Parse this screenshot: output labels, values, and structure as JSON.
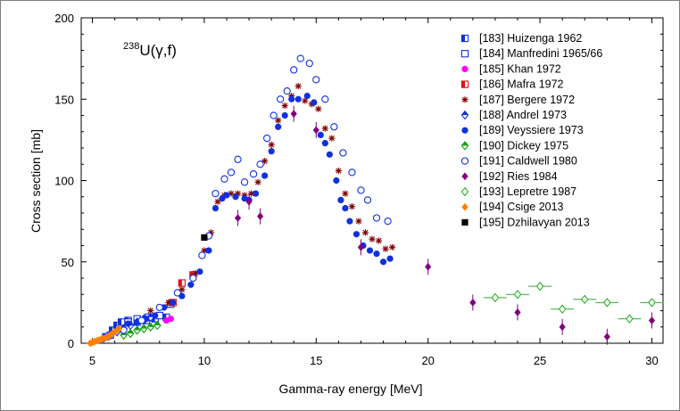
{
  "chart_data": {
    "type": "scatter",
    "xlabel": "Gamma-ray energy [MeV]",
    "ylabel": "Cross section [mb]",
    "xlim": [
      4.5,
      30.5
    ],
    "ylim": [
      0,
      200
    ],
    "xticks": [
      5,
      10,
      15,
      20,
      25,
      30
    ],
    "yticks": [
      0,
      50,
      100,
      150,
      200
    ],
    "grid": false,
    "legend_position": "top-right",
    "annotation": {
      "sup": "238",
      "text": "U(γ,f)"
    },
    "series": [
      {
        "name": "[183] Huizenga 1962",
        "color": "#1030e0",
        "marker": "half-square",
        "points": [
          [
            5.6,
            4
          ],
          [
            5.9,
            8
          ],
          [
            6.1,
            11
          ],
          [
            6.3,
            13
          ],
          [
            6.6,
            14
          ],
          [
            7.0,
            13
          ],
          [
            7.4,
            14
          ],
          [
            7.8,
            15
          ],
          [
            8.3,
            16
          ]
        ]
      },
      {
        "name": "[184] Manfredini 1965/66",
        "color": "#1030e0",
        "marker": "open-square",
        "points": [
          [
            5.8,
            5
          ],
          [
            6.2,
            9
          ],
          [
            6.6,
            13
          ],
          [
            7.0,
            15
          ],
          [
            7.5,
            16
          ],
          [
            8.0,
            17
          ],
          [
            8.5,
            24
          ]
        ]
      },
      {
        "name": "[185] Khan 1972",
        "color": "#ff00ff",
        "marker": "filled-circle",
        "points": [
          [
            8.3,
            14
          ],
          [
            8.5,
            15
          ]
        ]
      },
      {
        "name": "[186] Mafra 1972",
        "color": "#e01010",
        "marker": "half-square",
        "points": [
          [
            8.6,
            25
          ],
          [
            9.0,
            37
          ],
          [
            9.5,
            42
          ]
        ]
      },
      {
        "name": "[187] Bergere 1972",
        "color": "#800000",
        "marker": "asterisk",
        "points": [
          [
            7.6,
            20
          ],
          [
            8.4,
            25
          ],
          [
            9.0,
            33
          ],
          [
            9.6,
            43
          ],
          [
            10.0,
            57
          ],
          [
            10.3,
            68
          ],
          [
            10.6,
            87
          ],
          [
            10.9,
            91
          ],
          [
            11.2,
            92
          ],
          [
            11.5,
            92
          ],
          [
            11.8,
            91
          ],
          [
            12.1,
            92
          ],
          [
            12.4,
            99
          ],
          [
            12.7,
            112
          ],
          [
            13.0,
            122
          ],
          [
            13.3,
            137
          ],
          [
            13.6,
            146
          ],
          [
            13.9,
            152
          ],
          [
            14.2,
            158
          ],
          [
            14.5,
            149
          ],
          [
            14.8,
            147
          ],
          [
            15.1,
            144
          ],
          [
            15.4,
            132
          ],
          [
            15.7,
            126
          ],
          [
            16.0,
            106
          ],
          [
            16.3,
            92
          ],
          [
            16.6,
            84
          ],
          [
            16.9,
            75
          ],
          [
            17.2,
            68
          ],
          [
            17.5,
            64
          ],
          [
            17.8,
            63
          ],
          [
            18.1,
            58
          ],
          [
            18.4,
            59
          ]
        ]
      },
      {
        "name": "[188] Andrel 1973",
        "color": "#1030e0",
        "marker": "half-diamond",
        "points": [
          [
            5.5,
            3
          ],
          [
            5.8,
            5
          ],
          [
            6.1,
            7
          ],
          [
            6.4,
            9
          ],
          [
            6.7,
            11
          ],
          [
            7.0,
            13
          ],
          [
            7.3,
            15
          ],
          [
            7.6,
            16
          ]
        ]
      },
      {
        "name": "[189] Veyssiere 1973",
        "color": "#1030e0",
        "marker": "filled-circle",
        "points": [
          [
            6.6,
            12
          ],
          [
            7.0,
            13
          ],
          [
            7.4,
            15
          ],
          [
            7.8,
            17
          ],
          [
            8.2,
            22
          ],
          [
            8.6,
            25
          ],
          [
            9.0,
            29
          ],
          [
            9.4,
            36
          ],
          [
            9.8,
            44
          ],
          [
            10.2,
            57
          ],
          [
            10.5,
            83
          ],
          [
            10.8,
            89
          ],
          [
            11.0,
            91
          ],
          [
            11.4,
            90
          ],
          [
            11.8,
            89
          ],
          [
            12.0,
            88
          ],
          [
            12.3,
            92
          ],
          [
            12.7,
            103
          ],
          [
            13.0,
            118
          ],
          [
            13.3,
            133
          ],
          [
            13.6,
            140
          ],
          [
            13.9,
            150
          ],
          [
            14.2,
            150
          ],
          [
            14.6,
            152
          ],
          [
            14.9,
            148
          ],
          [
            15.2,
            128
          ],
          [
            15.4,
            123
          ],
          [
            15.6,
            116
          ],
          [
            15.9,
            100
          ],
          [
            16.1,
            88
          ],
          [
            16.3,
            83
          ],
          [
            16.5,
            75
          ],
          [
            16.8,
            67
          ],
          [
            17.1,
            60
          ],
          [
            17.4,
            57
          ],
          [
            17.7,
            55
          ],
          [
            18.0,
            50
          ],
          [
            18.3,
            52
          ]
        ]
      },
      {
        "name": "[190] Dickey 1975",
        "color": "#10a010",
        "marker": "half-diamond",
        "points": [
          [
            6.4,
            5
          ],
          [
            6.7,
            6
          ],
          [
            7.0,
            8
          ],
          [
            7.3,
            9
          ],
          [
            7.6,
            10
          ],
          [
            7.9,
            11
          ]
        ]
      },
      {
        "name": "[191] Caldwell 1980",
        "color": "#1030e0",
        "marker": "open-circle",
        "points": [
          [
            6.4,
            8
          ],
          [
            7.2,
            14
          ],
          [
            8.0,
            22
          ],
          [
            8.8,
            31
          ],
          [
            9.5,
            40
          ],
          [
            9.9,
            54
          ],
          [
            10.2,
            66
          ],
          [
            10.5,
            92
          ],
          [
            10.9,
            101
          ],
          [
            11.2,
            105
          ],
          [
            11.5,
            113
          ],
          [
            11.8,
            99
          ],
          [
            12.2,
            104
          ],
          [
            12.5,
            110
          ],
          [
            12.8,
            126
          ],
          [
            13.1,
            140
          ],
          [
            13.4,
            150
          ],
          [
            13.7,
            155
          ],
          [
            14.0,
            168
          ],
          [
            14.3,
            175
          ],
          [
            14.7,
            172
          ],
          [
            15.0,
            162
          ],
          [
            15.4,
            150
          ],
          [
            15.8,
            133
          ],
          [
            16.2,
            117
          ],
          [
            16.6,
            105
          ],
          [
            17.0,
            94
          ],
          [
            17.3,
            88
          ],
          [
            17.7,
            77
          ],
          [
            18.2,
            75
          ]
        ]
      },
      {
        "name": "[192] Ries 1984",
        "color": "#800080",
        "marker": "filled-diamond",
        "points": [
          [
            11.5,
            77
          ],
          [
            12.0,
            87
          ],
          [
            12.5,
            78
          ],
          [
            14.0,
            141
          ],
          [
            15.0,
            131
          ],
          [
            17.0,
            59
          ],
          [
            20.0,
            47
          ],
          [
            22.0,
            25
          ],
          [
            24.0,
            19
          ],
          [
            26.0,
            10
          ],
          [
            28.0,
            4
          ],
          [
            30.0,
            14
          ]
        ]
      },
      {
        "name": "[193] Lepretre 1987",
        "color": "#30b030",
        "marker": "open-diamond",
        "points": [
          [
            23.0,
            28
          ],
          [
            24.0,
            30
          ],
          [
            25.0,
            35
          ],
          [
            26.0,
            21
          ],
          [
            27.0,
            27
          ],
          [
            28.0,
            25
          ],
          [
            29.0,
            15
          ],
          [
            30.0,
            25
          ]
        ]
      },
      {
        "name": "[194] Csige 2013",
        "color": "#ff8000",
        "marker": "filled-diamond",
        "points": [
          [
            4.9,
            0
          ],
          [
            5.0,
            0.5
          ],
          [
            5.1,
            1
          ],
          [
            5.2,
            1.5
          ],
          [
            5.3,
            2
          ],
          [
            5.4,
            2.5
          ],
          [
            5.5,
            3
          ],
          [
            5.6,
            3.5
          ],
          [
            5.7,
            4
          ],
          [
            5.8,
            5
          ],
          [
            5.9,
            6
          ],
          [
            6.0,
            7
          ],
          [
            6.1,
            8
          ],
          [
            6.2,
            9
          ]
        ]
      },
      {
        "name": "[195] Dzhilavyan 2013",
        "color": "#000000",
        "marker": "filled-square",
        "points": [
          [
            10.0,
            65
          ]
        ]
      }
    ]
  }
}
